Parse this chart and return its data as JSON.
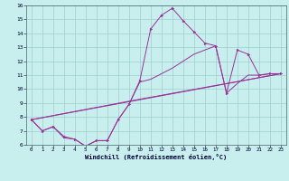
{
  "background_color": "#c8eeee",
  "grid_color": "#9ecece",
  "line_color": "#993399",
  "xlim": [
    -0.5,
    23.5
  ],
  "ylim": [
    6,
    16
  ],
  "xticks": [
    0,
    1,
    2,
    3,
    4,
    5,
    6,
    7,
    8,
    9,
    10,
    11,
    12,
    13,
    14,
    15,
    16,
    17,
    18,
    19,
    20,
    21,
    22,
    23
  ],
  "yticks": [
    6,
    7,
    8,
    9,
    10,
    11,
    12,
    13,
    14,
    15,
    16
  ],
  "xlabel": "Windchill (Refroidissement éolien,°C)",
  "line1_x": [
    0,
    1,
    2,
    3,
    4,
    5,
    6,
    7,
    8,
    9,
    10,
    11,
    12,
    13,
    14,
    15,
    16,
    17,
    18,
    19,
    20,
    21,
    22,
    23
  ],
  "line1_y": [
    7.8,
    7.0,
    7.3,
    6.6,
    6.4,
    5.9,
    6.3,
    6.3,
    7.8,
    8.9,
    10.6,
    14.3,
    15.3,
    15.8,
    14.9,
    14.1,
    13.3,
    13.1,
    9.7,
    12.8,
    12.5,
    11.0,
    11.1,
    11.1
  ],
  "line2_x": [
    0,
    1,
    2,
    3,
    4,
    5,
    6,
    7,
    8,
    9,
    10,
    11,
    12,
    13,
    14,
    15,
    16,
    17,
    18,
    19,
    20,
    21,
    22,
    23
  ],
  "line2_y": [
    7.8,
    7.0,
    7.3,
    6.5,
    6.4,
    5.9,
    6.3,
    6.3,
    7.8,
    8.9,
    10.5,
    10.7,
    11.1,
    11.5,
    12.0,
    12.5,
    12.8,
    13.1,
    9.7,
    10.4,
    11.0,
    11.0,
    11.1,
    11.1
  ],
  "line3_x": [
    0,
    23
  ],
  "line3_y": [
    7.8,
    11.1
  ],
  "line4_x": [
    0,
    9.5,
    23
  ],
  "line4_y": [
    7.8,
    9.2,
    11.1
  ]
}
